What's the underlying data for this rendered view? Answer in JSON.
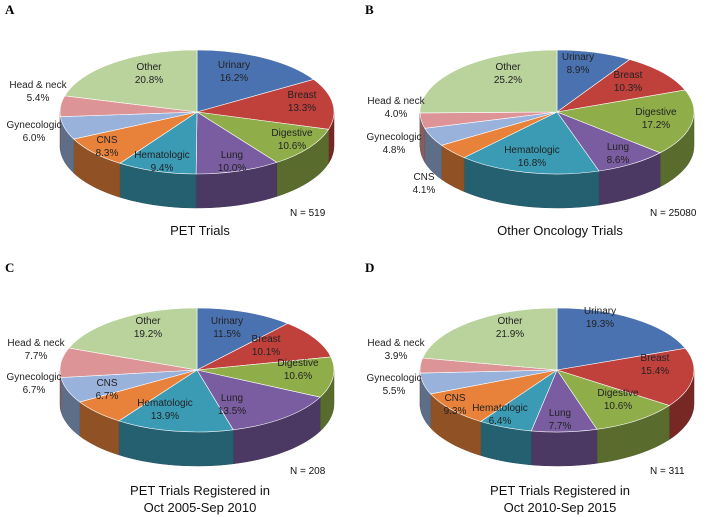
{
  "colors": {
    "Urinary": "#4a72b0",
    "Breast": "#c0403c",
    "Digestive": "#8fae4a",
    "Lung": "#7a5ca0",
    "Hematologic": "#3b9bb5",
    "CNS": "#e8823a",
    "Gynecologic": "#98b2dc",
    "Head & neck": "#dc9496",
    "Other": "#bad39c"
  },
  "chart_data": [
    {
      "type": "pie",
      "panel": "A",
      "title": "PET Trials",
      "n_label": "N = 519",
      "categories": [
        "Urinary",
        "Breast",
        "Digestive",
        "Lung",
        "Hematologic",
        "CNS",
        "Gynecologic",
        "Head & neck",
        "Other"
      ],
      "values": [
        16.2,
        13.3,
        10.6,
        10.0,
        9.4,
        8.3,
        6.0,
        5.4,
        20.8
      ]
    },
    {
      "type": "pie",
      "panel": "B",
      "title": "Other Oncology Trials",
      "n_label": "N = 25080",
      "categories": [
        "Urinary",
        "Breast",
        "Digestive",
        "Lung",
        "Hematologic",
        "CNS",
        "Gynecologic",
        "Head & neck",
        "Other"
      ],
      "values": [
        8.9,
        10.3,
        17.2,
        8.6,
        16.8,
        4.1,
        4.8,
        4.0,
        25.2
      ]
    },
    {
      "type": "pie",
      "panel": "C",
      "title": "PET Trials Registered in",
      "title2": "Oct 2005-Sep 2010",
      "n_label": "N = 208",
      "categories": [
        "Urinary",
        "Breast",
        "Digestive",
        "Lung",
        "Hematologic",
        "CNS",
        "Gynecologic",
        "Head & neck",
        "Other"
      ],
      "values": [
        11.5,
        10.1,
        10.6,
        13.5,
        13.9,
        6.7,
        6.7,
        7.7,
        19.2
      ]
    },
    {
      "type": "pie",
      "panel": "D",
      "title": "PET Trials Registered in",
      "title2": "Oct 2010-Sep 2015",
      "n_label": "N = 311",
      "categories": [
        "Urinary",
        "Breast",
        "Digestive",
        "Lung",
        "Hematologic",
        "CNS",
        "Gynecologic",
        "Head & neck",
        "Other"
      ],
      "values": [
        19.3,
        15.4,
        10.6,
        7.7,
        6.4,
        9.3,
        5.5,
        3.9,
        21.9
      ]
    }
  ]
}
